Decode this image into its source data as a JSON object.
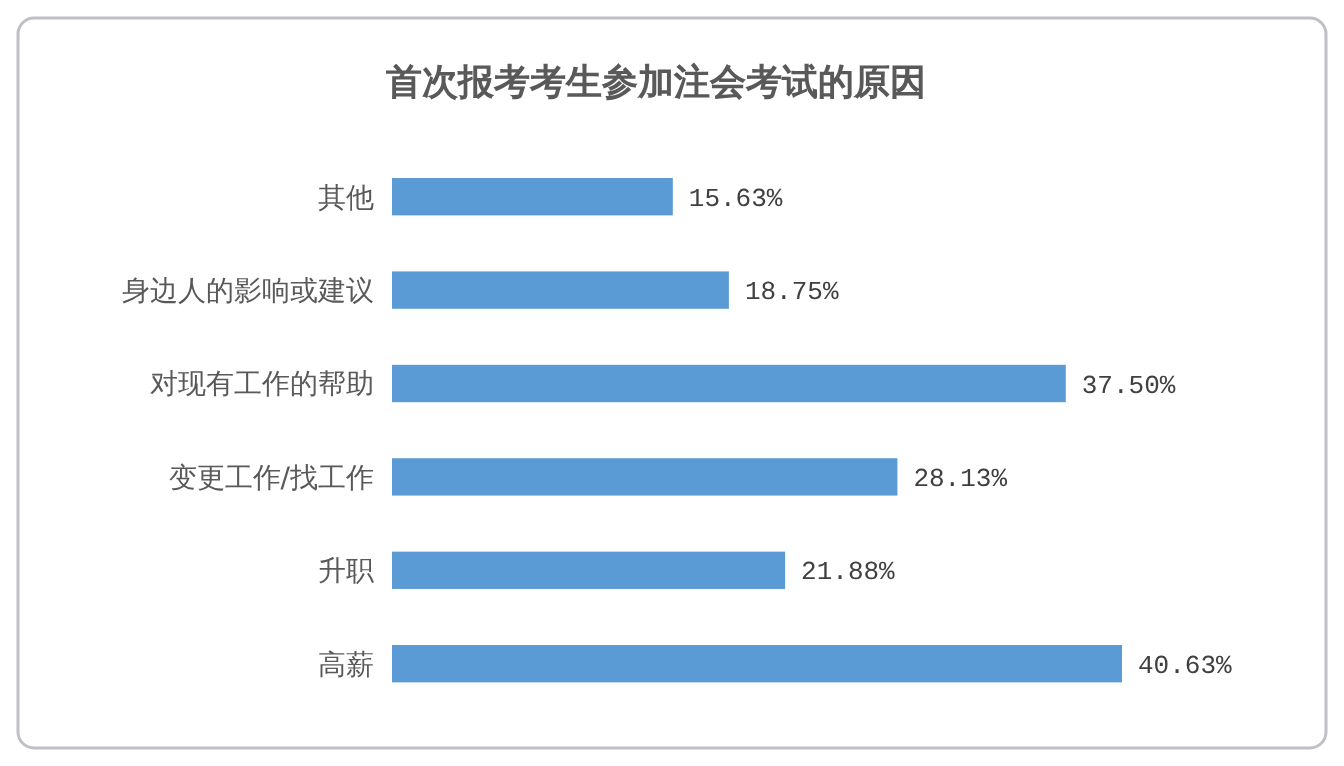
{
  "chart_data": {
    "type": "bar",
    "orientation": "horizontal",
    "title": "首次报考考生参加注会考试的原因",
    "categories": [
      "其他",
      "身边人的影响或建议",
      "对现有工作的帮助",
      "变更工作/找工作",
      "升职",
      "高薪"
    ],
    "values": [
      15.63,
      18.75,
      37.5,
      28.13,
      21.88,
      40.63
    ],
    "value_labels": [
      "15.63%",
      "18.75%",
      "37.50%",
      "28.13%",
      "21.88%",
      "40.63%"
    ],
    "color": "#5b9bd5"
  }
}
